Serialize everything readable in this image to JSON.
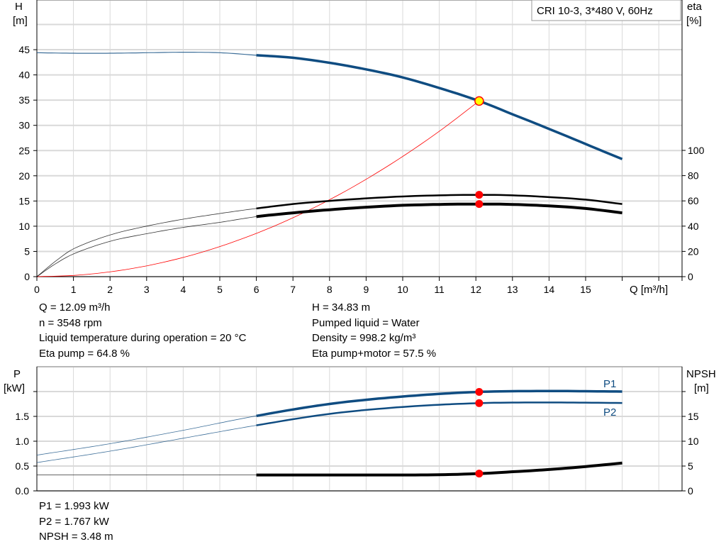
{
  "chart_data": [
    {
      "type": "line",
      "title": "CRI 10-3, 3*480 V, 60Hz",
      "xlabel": "Q [m³/h]",
      "ylabel": "H\n[m]",
      "ylabel_lines": [
        "H",
        "[m]"
      ],
      "y2label_lines": [
        "eta",
        "[%]"
      ],
      "xlim": [
        0,
        17
      ],
      "ylim": [
        0,
        50
      ],
      "y2lim": [
        0,
        100
      ],
      "xticks": [
        "0",
        "1",
        "2",
        "3",
        "4",
        "5",
        "6",
        "7",
        "8",
        "9",
        "10",
        "11",
        "12",
        "13",
        "14",
        "15"
      ],
      "yticks": [
        "0",
        "5",
        "10",
        "15",
        "20",
        "25",
        "30",
        "35",
        "40",
        "45"
      ],
      "y2ticks": [
        "0",
        "20",
        "40",
        "60",
        "80",
        "100"
      ],
      "grid": true,
      "operating_range": [
        6,
        16
      ],
      "series": [
        {
          "key": "H",
          "axis": "left",
          "color": "#0f4c81",
          "x": [
            0,
            1,
            2,
            3,
            4,
            5,
            6,
            7,
            8,
            9,
            10,
            11,
            12.09,
            13,
            14,
            15,
            16
          ],
          "y": [
            44.4,
            44.3,
            44.3,
            44.4,
            44.5,
            44.4,
            43.9,
            43.4,
            42.4,
            41.1,
            39.5,
            37.4,
            34.83,
            32.2,
            29.3,
            26.3,
            23.3
          ]
        },
        {
          "key": "eta-pump",
          "axis": "right",
          "color": "#000000",
          "x": [
            0,
            0.5,
            1,
            2,
            3,
            4,
            5,
            6,
            7,
            8,
            9,
            10,
            11,
            12.09,
            13,
            14,
            15,
            16
          ],
          "y": [
            0,
            12,
            22,
            33,
            40,
            45.5,
            50,
            54,
            57.5,
            60,
            62,
            63.5,
            64.4,
            64.8,
            64.4,
            63,
            61,
            57.5
          ]
        },
        {
          "key": "eta-pump-motor",
          "axis": "right",
          "color": "#000000",
          "x": [
            0,
            0.5,
            1,
            2,
            3,
            4,
            5,
            6,
            7,
            8,
            9,
            10,
            11,
            12.09,
            13,
            14,
            15,
            16
          ],
          "y": [
            0,
            10,
            18,
            28,
            34,
            39,
            43,
            47.5,
            50.5,
            53,
            55,
            56.5,
            57.2,
            57.5,
            57.2,
            56,
            54,
            50.5
          ]
        },
        {
          "key": "system-curve",
          "axis": "left",
          "color": "#ff0000",
          "x": [
            0,
            1,
            2,
            3,
            4,
            5,
            6,
            7,
            8,
            9,
            10,
            11,
            12.09
          ],
          "y": [
            0,
            0.24,
            0.95,
            2.14,
            3.81,
            5.96,
            8.58,
            11.67,
            15.25,
            19.3,
            23.83,
            28.83,
            34.83
          ]
        }
      ],
      "operating_point": {
        "Q": 12.09,
        "H": 34.83,
        "eta_pump": 64.8,
        "eta_pump_motor": 57.5
      }
    },
    {
      "type": "line",
      "ylabel_lines": [
        "P",
        "[kW]"
      ],
      "y2label_lines": [
        "NPSH",
        "[m]"
      ],
      "xlim": [
        0,
        17
      ],
      "ylim": [
        0,
        2.5
      ],
      "y2lim": [
        0,
        25
      ],
      "yticks": [
        "0.0",
        "0.5",
        "1.0",
        "1.5",
        ""
      ],
      "y2ticks": [
        "0",
        "5",
        "10",
        "15",
        ""
      ],
      "grid": true,
      "operating_range": [
        6,
        16
      ],
      "series": [
        {
          "key": "P1",
          "name": "P1",
          "axis": "left",
          "color": "#0f4c81",
          "x": [
            0,
            2,
            4,
            6,
            8,
            10,
            12.09,
            14,
            16
          ],
          "y": [
            0.72,
            0.95,
            1.22,
            1.51,
            1.75,
            1.9,
            1.993,
            2.01,
            2.0
          ]
        },
        {
          "key": "P2",
          "name": "P2",
          "axis": "left",
          "color": "#0f4c81",
          "x": [
            0,
            2,
            4,
            6,
            8,
            10,
            12.09,
            14,
            16
          ],
          "y": [
            0.57,
            0.8,
            1.06,
            1.32,
            1.55,
            1.69,
            1.767,
            1.78,
            1.77
          ]
        },
        {
          "key": "NPSH",
          "axis": "right",
          "color": "#000000",
          "x": [
            0,
            2,
            4,
            6,
            8,
            10,
            11,
            12.09,
            13,
            14,
            15,
            16
          ],
          "y": [
            3.2,
            3.2,
            3.2,
            3.2,
            3.2,
            3.2,
            3.25,
            3.48,
            3.85,
            4.3,
            4.9,
            5.6
          ]
        }
      ],
      "operating_point": {
        "Q": 12.09,
        "P1": 1.993,
        "P2": 1.767,
        "NPSH": 3.48
      }
    }
  ],
  "info": {
    "left": [
      "Q = 12.09 m³/h",
      "n = 3548 rpm",
      "Liquid temperature during operation = 20 °C",
      "Eta pump = 64.8 %"
    ],
    "right": [
      "H = 34.83 m",
      "Pumped liquid = Water",
      "Density = 998.2 kg/m³",
      "Eta pump+motor = 57.5 %"
    ],
    "bottom": [
      "P1 = 1.993 kW",
      "P2 = 1.767 kW",
      "NPSH = 3.48 m"
    ]
  },
  "colors": {
    "grid": "#d9d9d9",
    "marker": "#ff0000",
    "op_marker_fill": "#ffff00"
  }
}
